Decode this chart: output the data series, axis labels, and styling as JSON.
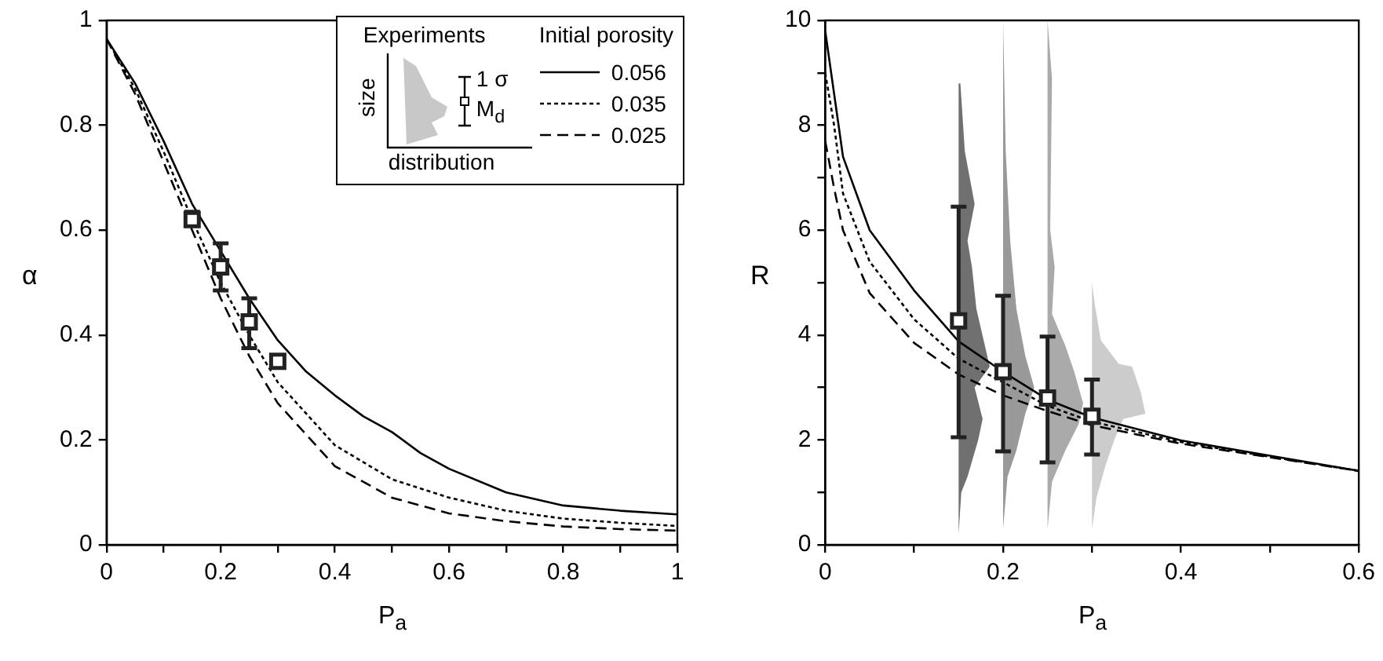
{
  "chart_data": [
    {
      "type": "line",
      "xlabel": "P$_{a}$",
      "ylabel": "α",
      "xlim": [
        0,
        1
      ],
      "ylim": [
        0,
        1
      ],
      "xticks": [
        0,
        {
          "value": 0.1,
          "label": null
        },
        0.2,
        {
          "value": 0.3,
          "label": null
        },
        0.4,
        {
          "value": 0.5,
          "label": null
        },
        0.6,
        {
          "value": 0.7,
          "label": null
        },
        0.8,
        {
          "value": 0.9,
          "label": null
        },
        1
      ],
      "yticks": [
        0,
        0.2,
        0.4,
        0.6,
        0.8,
        1
      ],
      "grid": false,
      "legend": "top right",
      "legend_title": "Initial porosity",
      "annotations": [
        "Experiments",
        "size",
        "distribution",
        "1 σ",
        "M$_{d}$"
      ],
      "series": [
        {
          "type": "scatter",
          "color": "#222222",
          "marker": "square",
          "x": [
            0.15,
            0.2,
            0.25,
            0.3
          ],
          "values": [
            0.62,
            0.53,
            0.425,
            0.35
          ],
          "errors": [
            [
              0.61,
              0.635
            ],
            [
              0.485,
              0.575
            ],
            [
              0.375,
              0.47
            ],
            null
          ]
        },
        {
          "type": "line",
          "name": "0.056",
          "color": "#000000",
          "line_style": "solid",
          "marker": "none",
          "x": [
            0,
            0.05,
            0.1,
            0.15,
            0.2,
            0.25,
            0.3,
            0.35,
            0.4,
            0.45,
            0.5,
            0.55,
            0.6,
            0.7,
            0.8,
            0.9,
            1
          ],
          "values": [
            0.965,
            0.88,
            0.77,
            0.65,
            0.56,
            0.47,
            0.39,
            0.33,
            0.285,
            0.245,
            0.215,
            0.175,
            0.145,
            0.1,
            0.075,
            0.065,
            0.058
          ]
        },
        {
          "type": "line",
          "name": "0.035",
          "color": "#000000",
          "line_style": "dotted",
          "marker": "none",
          "x": [
            0,
            0.05,
            0.1,
            0.15,
            0.2,
            0.25,
            0.3,
            0.4,
            0.5,
            0.6,
            0.7,
            0.8,
            0.9,
            1
          ],
          "values": [
            0.965,
            0.87,
            0.75,
            0.62,
            0.5,
            0.4,
            0.31,
            0.19,
            0.125,
            0.09,
            0.065,
            0.05,
            0.042,
            0.036
          ]
        },
        {
          "type": "line",
          "name": "0.025",
          "color": "#000000",
          "line_style": "dashed",
          "marker": "none",
          "x": [
            0,
            0.05,
            0.1,
            0.15,
            0.2,
            0.25,
            0.3,
            0.4,
            0.5,
            0.6,
            0.7,
            0.8,
            0.9,
            1
          ],
          "values": [
            0.965,
            0.86,
            0.73,
            0.6,
            0.47,
            0.36,
            0.27,
            0.15,
            0.09,
            0.06,
            0.045,
            0.035,
            0.03,
            0.027
          ]
        }
      ]
    },
    {
      "type": "line",
      "xlabel": "P$_{a}$",
      "ylabel": "R",
      "xlim": [
        0,
        0.6
      ],
      "ylim": [
        0,
        10
      ],
      "xticks": [
        0,
        {
          "value": 0.1,
          "label": null
        },
        0.2,
        {
          "value": 0.3,
          "label": null
        },
        0.4,
        {
          "value": 0.5,
          "label": null
        },
        0.6
      ],
      "yticks": [
        0,
        {
          "value": 1,
          "label": null
        },
        2,
        {
          "value": 3,
          "label": null
        },
        4,
        {
          "value": 5,
          "label": null
        },
        6,
        {
          "value": 7,
          "label": null
        },
        8,
        {
          "value": 9,
          "label": null
        },
        10
      ],
      "grid": false,
      "series": [
        {
          "type": "scatter",
          "color": "#222222",
          "marker": "square",
          "x": [
            0.15,
            0.2,
            0.25,
            0.3
          ],
          "values": [
            4.27,
            3.3,
            2.8,
            2.45
          ],
          "errors": [
            [
              2.05,
              6.45
            ],
            [
              1.78,
              4.75
            ],
            [
              1.57,
              3.97
            ],
            [
              1.72,
              3.15
            ]
          ]
        },
        {
          "type": "line",
          "color": "#000000",
          "line_style": "solid",
          "marker": "none",
          "x": [
            0,
            0.01,
            0.02,
            0.05,
            0.1,
            0.15,
            0.2,
            0.25,
            0.3,
            0.4,
            0.5,
            0.6
          ],
          "values": [
            9.8,
            8.6,
            7.4,
            6.0,
            4.85,
            3.88,
            3.3,
            2.77,
            2.43,
            1.99,
            1.7,
            1.41
          ]
        },
        {
          "type": "line",
          "color": "#000000",
          "line_style": "dotted",
          "marker": "none",
          "x": [
            0,
            0.01,
            0.02,
            0.05,
            0.1,
            0.15,
            0.2,
            0.25,
            0.3,
            0.4,
            0.5,
            0.6
          ],
          "values": [
            9.0,
            8.0,
            6.7,
            5.4,
            4.3,
            3.55,
            3.1,
            2.65,
            2.35,
            1.96,
            1.68,
            1.41
          ]
        },
        {
          "type": "line",
          "color": "#000000",
          "line_style": "dashed",
          "marker": "none",
          "x": [
            0,
            0.01,
            0.02,
            0.05,
            0.1,
            0.15,
            0.2,
            0.25,
            0.3,
            0.4,
            0.5,
            0.6
          ],
          "values": [
            7.7,
            6.8,
            6.0,
            4.8,
            3.85,
            3.25,
            2.85,
            2.55,
            2.28,
            1.93,
            1.67,
            1.41
          ]
        },
        {
          "type": "area",
          "color": "#707070",
          "x": [
            0.15,
            0.153,
            0.16,
            0.172,
            0.177,
            0.168,
            0.185,
            0.17,
            0.165,
            0.16,
            0.168,
            0.157,
            0.152,
            0.15
          ],
          "values": [
            0.2,
            1.0,
            1.3,
            2.0,
            2.4,
            3.0,
            3.4,
            4.5,
            5.3,
            5.8,
            6.5,
            7.5,
            8.8,
            8.8
          ]
        },
        {
          "type": "area",
          "color": "#999999",
          "x": [
            0.2,
            0.205,
            0.215,
            0.225,
            0.235,
            0.225,
            0.215,
            0.208,
            0.203,
            0.2
          ],
          "values": [
            0.3,
            1.3,
            1.8,
            2.5,
            3.0,
            3.6,
            4.5,
            5.8,
            7.5,
            10
          ]
        },
        {
          "type": "area",
          "color": "#aaaaaa",
          "x": [
            0.25,
            0.255,
            0.27,
            0.285,
            0.29,
            0.28,
            0.27,
            0.255,
            0.258,
            0.253,
            0.255,
            0.25
          ],
          "values": [
            0.3,
            1.2,
            1.8,
            2.3,
            2.7,
            3.3,
            3.8,
            4.4,
            5.3,
            6.0,
            8.9,
            10
          ]
        },
        {
          "type": "area",
          "color": "#cccccc",
          "x": [
            0.3,
            0.305,
            0.315,
            0.325,
            0.335,
            0.36,
            0.355,
            0.345,
            0.33,
            0.31,
            0.303,
            0.3
          ],
          "values": [
            0.3,
            0.9,
            1.5,
            2.0,
            2.4,
            2.5,
            2.9,
            3.4,
            3.45,
            3.9,
            4.6,
            5.0
          ]
        }
      ]
    }
  ]
}
